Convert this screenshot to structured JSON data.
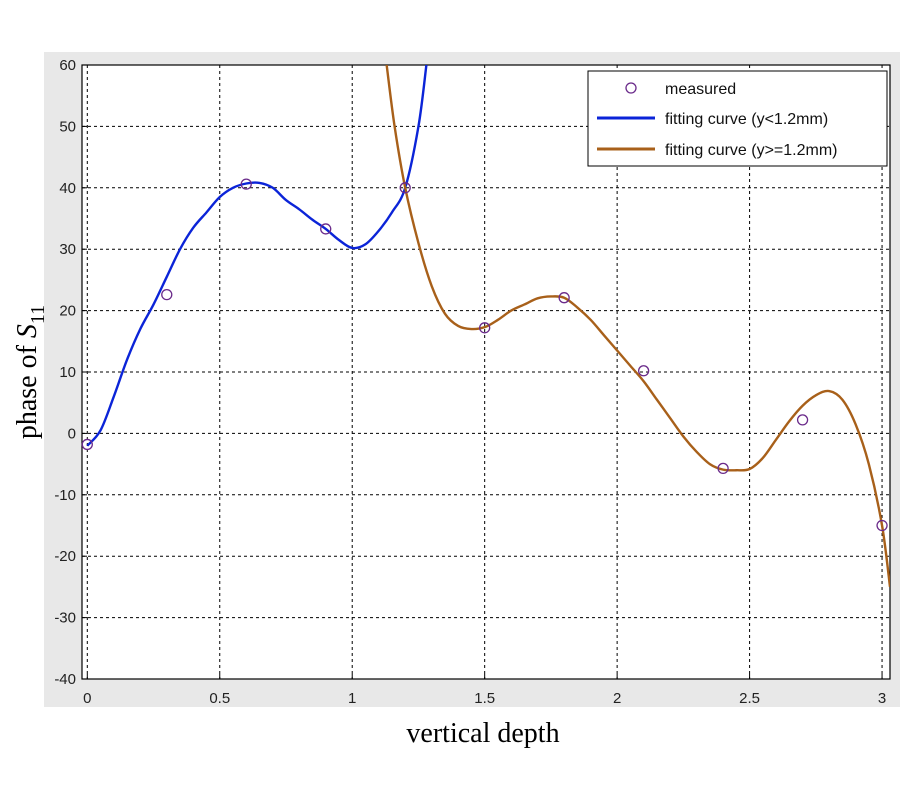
{
  "chart_data": {
    "type": "line",
    "title": "",
    "xlabel": "vertical depth",
    "ylabel_main": "phase of ",
    "ylabel_symbol": "S",
    "ylabel_subscript": "11",
    "xlim": [
      -0.02,
      3.03
    ],
    "ylim": [
      -40,
      60
    ],
    "xticks": [
      0,
      0.5,
      1,
      1.5,
      2,
      2.5,
      3
    ],
    "xtick_labels": [
      "0",
      "0.5",
      "1",
      "1.5",
      "2",
      "2.5",
      "3"
    ],
    "yticks": [
      -40,
      -30,
      -20,
      -10,
      0,
      10,
      20,
      30,
      40,
      50,
      60
    ],
    "ytick_labels": [
      "-40",
      "-30",
      "-20",
      "-10",
      "0",
      "10",
      "20",
      "30",
      "40",
      "50",
      "60"
    ],
    "grid": true,
    "legend_position": "top-right",
    "colors": {
      "measured": "#6a2a8a",
      "fit_low": "#0b24d8",
      "fit_high": "#a8601a",
      "panel": "#e8e8e8"
    },
    "series": [
      {
        "name": "measured",
        "kind": "markers",
        "x": [
          0,
          0.3,
          0.6,
          0.9,
          1.2,
          1.5,
          1.8,
          2.1,
          2.4,
          2.7,
          3.0
        ],
        "y": [
          -1.8,
          22.6,
          40.6,
          33.3,
          40.0,
          17.2,
          22.1,
          10.2,
          -5.7,
          2.2,
          -15.0
        ]
      },
      {
        "name": "fitting curve (y<1.2mm)",
        "kind": "line",
        "x": [
          0,
          0.05,
          0.1,
          0.15,
          0.2,
          0.25,
          0.3,
          0.35,
          0.4,
          0.45,
          0.5,
          0.55,
          0.6,
          0.65,
          0.7,
          0.75,
          0.8,
          0.85,
          0.9,
          0.95,
          1.0,
          1.05,
          1.1,
          1.15,
          1.2,
          1.25,
          1.28
        ],
        "y": [
          -2,
          0.5,
          6,
          12,
          17,
          21,
          25.5,
          30,
          33.5,
          36,
          38.5,
          40,
          40.7,
          40.8,
          40,
          38,
          36.5,
          34.8,
          33.3,
          31.5,
          30.2,
          30.8,
          33,
          36,
          40,
          50,
          60
        ]
      },
      {
        "name": "fitting curve (y>=1.2mm)",
        "kind": "line",
        "x": [
          1.13,
          1.16,
          1.2,
          1.25,
          1.3,
          1.35,
          1.4,
          1.45,
          1.5,
          1.55,
          1.6,
          1.65,
          1.7,
          1.75,
          1.8,
          1.85,
          1.9,
          1.95,
          2.0,
          2.05,
          2.1,
          2.15,
          2.2,
          2.25,
          2.3,
          2.35,
          2.4,
          2.45,
          2.5,
          2.55,
          2.6,
          2.65,
          2.7,
          2.75,
          2.8,
          2.85,
          2.9,
          2.95,
          3.0,
          3.03
        ],
        "y": [
          60,
          50,
          40,
          31,
          24,
          19.5,
          17.5,
          17,
          17.3,
          18.5,
          20,
          21,
          22,
          22.3,
          22.1,
          20.5,
          18.5,
          16,
          13.5,
          11,
          8.5,
          5.5,
          2.5,
          -0.5,
          -3,
          -5,
          -5.9,
          -6,
          -5.8,
          -4,
          -1,
          2,
          4.5,
          6.2,
          6.9,
          5.5,
          1.5,
          -5,
          -15,
          -25
        ]
      }
    ]
  }
}
